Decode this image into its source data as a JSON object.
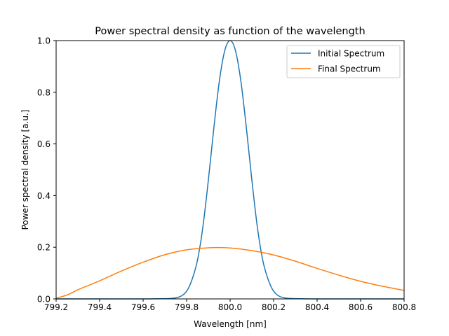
{
  "chart_data": {
    "type": "line",
    "title": "Power spectral density as function of the wavelength",
    "xlabel": "Wavelength [nm]",
    "ylabel": "Power spectral density [a.u.]",
    "xlim": [
      799.2,
      800.8
    ],
    "ylim": [
      0.0,
      1.0
    ],
    "xticks": [
      799.2,
      799.4,
      799.6,
      799.8,
      800.0,
      800.2,
      800.4,
      800.6,
      800.8
    ],
    "xtick_labels": [
      "799.2",
      "799.4",
      "799.6",
      "799.8",
      "800.0",
      "800.2",
      "800.4",
      "800.6",
      "800.8"
    ],
    "yticks": [
      0.0,
      0.2,
      0.4,
      0.6,
      0.8,
      1.0
    ],
    "ytick_labels": [
      "0.0",
      "0.2",
      "0.4",
      "0.6",
      "0.8",
      "1.0"
    ],
    "grid": false,
    "legend_position": "top-right",
    "series": [
      {
        "name": "Initial Spectrum",
        "color": "#1f77b4",
        "x": [
          799.2,
          799.6,
          799.7,
          799.75,
          799.8,
          799.825,
          799.85,
          799.875,
          799.9,
          799.925,
          799.95,
          799.975,
          800.0,
          800.025,
          800.05,
          800.075,
          800.1,
          800.125,
          800.15,
          800.175,
          800.2,
          800.25,
          800.3,
          800.4,
          800.8
        ],
        "y": [
          0.0,
          0.0,
          0.001,
          0.004,
          0.03,
          0.075,
          0.15,
          0.28,
          0.46,
          0.66,
          0.84,
          0.96,
          1.0,
          0.96,
          0.84,
          0.66,
          0.46,
          0.28,
          0.15,
          0.075,
          0.03,
          0.004,
          0.001,
          0.0,
          0.0
        ]
      },
      {
        "name": "Final Spectrum",
        "color": "#ff7f0e",
        "x": [
          799.2,
          799.25,
          799.3,
          799.4,
          799.5,
          799.6,
          799.7,
          799.8,
          799.9,
          799.94,
          800.0,
          800.1,
          800.2,
          800.3,
          800.4,
          800.5,
          800.6,
          800.7,
          800.8
        ],
        "y": [
          0.003,
          0.015,
          0.035,
          0.07,
          0.108,
          0.142,
          0.171,
          0.19,
          0.198,
          0.199,
          0.197,
          0.187,
          0.17,
          0.146,
          0.118,
          0.092,
          0.068,
          0.049,
          0.033
        ]
      }
    ]
  }
}
